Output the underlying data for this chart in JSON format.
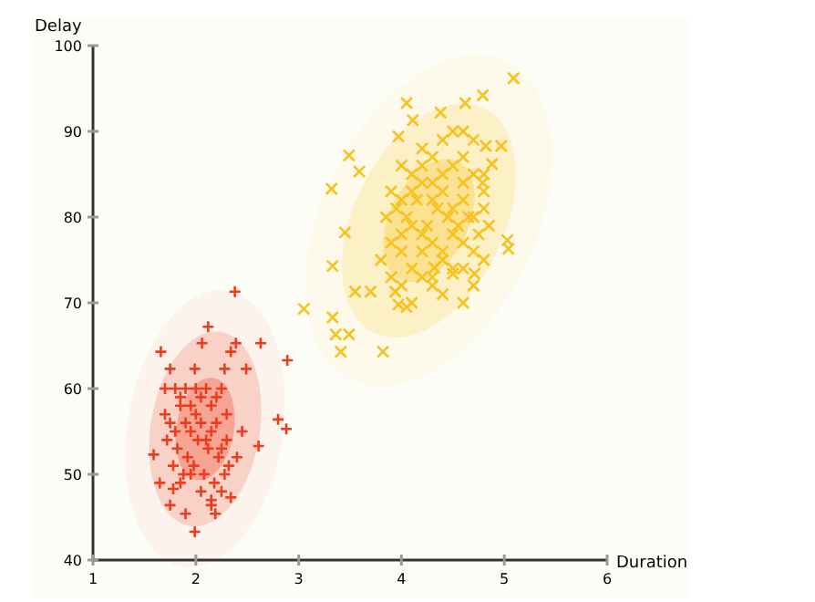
{
  "chart_data": {
    "type": "scatter",
    "xlabel": "Duration",
    "ylabel": "Delay",
    "xlim": [
      1,
      6
    ],
    "ylim": [
      40,
      100
    ],
    "xticks": [
      1,
      2,
      3,
      4,
      5,
      6
    ],
    "yticks": [
      40,
      50,
      60,
      70,
      80,
      90,
      100
    ],
    "grid": false,
    "series": [
      {
        "color": "#f03c1e",
        "marker": "cross",
        "x": [
          2.38,
          2.12,
          1.66,
          2.06,
          2.39,
          2.63,
          2.89,
          1.75,
          1.99,
          2.28,
          2.49,
          2.34,
          2.8,
          2.88,
          1.59,
          2.61,
          1.99,
          2.19,
          1.75,
          1.9,
          2.34,
          2.15,
          1.78,
          1.8,
          1.85,
          1.9,
          1.95,
          2.0,
          2.05,
          2.1,
          2.15,
          2.2,
          2.25,
          2.3,
          1.7,
          1.75,
          1.8,
          1.85,
          1.9,
          1.95,
          2.0,
          2.05,
          2.1,
          2.15,
          2.2,
          2.25,
          2.3,
          2.4,
          1.72,
          1.82,
          1.92,
          2.02,
          2.12,
          2.22,
          2.32,
          1.78,
          1.88,
          1.98,
          2.08,
          2.18,
          2.28,
          1.65,
          1.7,
          2.45,
          1.85,
          2.05,
          2.25,
          1.95,
          2.15
        ],
        "values": [
          71.3,
          67.2,
          64.3,
          65.3,
          65.3,
          65.3,
          63.3,
          62.3,
          62.3,
          62.3,
          62.3,
          64.3,
          56.4,
          55.3,
          52.3,
          53.3,
          43.3,
          45.4,
          46.4,
          45.4,
          47.3,
          46.4,
          48.3,
          60,
          59,
          60,
          58,
          60,
          59,
          60,
          58,
          59,
          60,
          57,
          57,
          56,
          55,
          58,
          56,
          55,
          57,
          56,
          54,
          55,
          56,
          53,
          54,
          52,
          54,
          53,
          52,
          54,
          53,
          52,
          51,
          51,
          50,
          51,
          50,
          49,
          50,
          49,
          60,
          55,
          49,
          48,
          48,
          50,
          47
        ]
      },
      {
        "color": "#f7c21c",
        "marker": "x",
        "x": [
          5.09,
          4.05,
          4.62,
          4.79,
          4.38,
          4.11,
          3.97,
          3.49,
          3.59,
          3.32,
          3.45,
          3.33,
          3.05,
          3.33,
          3.36,
          3.49,
          3.41,
          3.82,
          3.55,
          3.7,
          3.94,
          4.05,
          3.97,
          4.32,
          4.5,
          4.71,
          5.03,
          5.04,
          4.82,
          4.97,
          4.88,
          4.79,
          4.4,
          4.5,
          4.6,
          4.7,
          4.3,
          4.2,
          4.6,
          4.8,
          4.0,
          4.1,
          4.2,
          4.3,
          4.4,
          4.5,
          4.6,
          4.7,
          4.8,
          3.9,
          4.0,
          4.1,
          4.2,
          4.3,
          4.4,
          4.5,
          4.6,
          4.7,
          4.8,
          3.85,
          3.95,
          4.05,
          4.15,
          4.25,
          4.35,
          4.45,
          4.55,
          4.65,
          4.75,
          4.85,
          3.9,
          4.0,
          4.1,
          4.2,
          4.3,
          4.4,
          4.5,
          4.6,
          4.7,
          4.8,
          3.8,
          4.0,
          4.2,
          4.4,
          4.6,
          3.9,
          4.1,
          4.3,
          4.5,
          4.7,
          4.0,
          4.2,
          4.4,
          4.1,
          4.3,
          4.6
        ],
        "values": [
          96.2,
          93.3,
          93.3,
          94.2,
          92.2,
          91.3,
          89.4,
          87.2,
          85.3,
          83.3,
          78.2,
          74.3,
          69.3,
          68.3,
          66.3,
          66.3,
          64.3,
          64.3,
          71.3,
          71.3,
          71.3,
          69.5,
          69.8,
          74.1,
          73.4,
          73.4,
          77.3,
          76.3,
          88.3,
          88.3,
          86.2,
          84,
          89,
          90,
          90,
          89,
          87,
          88,
          87,
          85,
          86,
          85,
          86,
          84,
          85,
          86,
          84,
          85,
          83,
          83,
          82,
          83,
          84,
          82,
          83,
          81,
          82,
          80,
          81,
          80,
          81,
          80,
          82,
          79,
          81,
          80,
          79,
          80,
          78,
          79,
          77,
          78,
          79,
          78,
          77,
          76,
          78,
          77,
          76,
          75,
          75,
          76,
          76,
          75,
          74,
          73,
          74,
          73,
          74,
          72,
          72,
          73,
          71,
          70,
          72,
          70
        ]
      }
    ]
  }
}
